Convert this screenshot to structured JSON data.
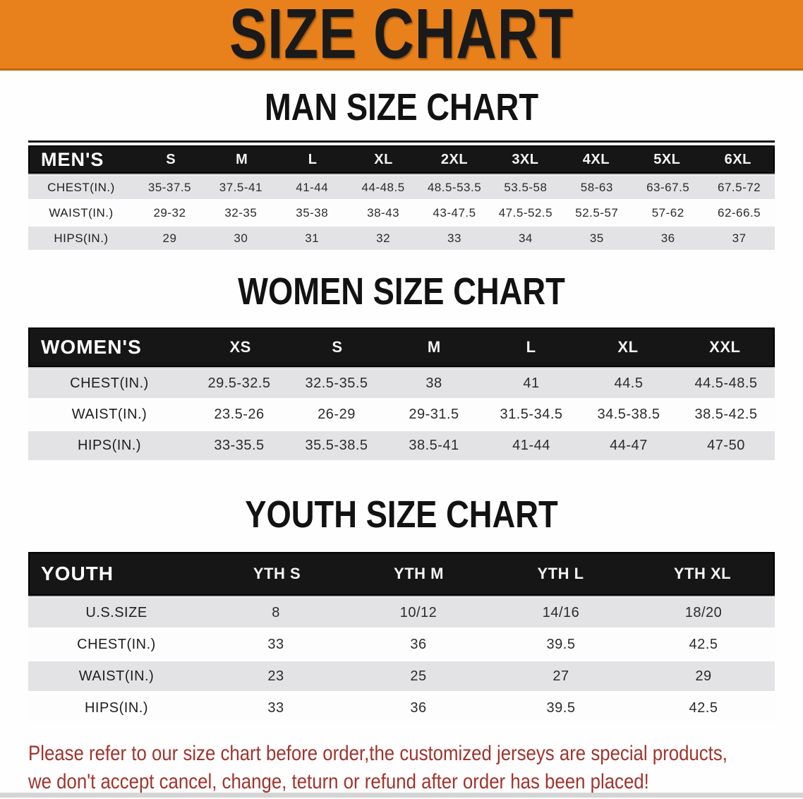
{
  "banner": {
    "title": "SIZE CHART",
    "bg_color": "#E8811C",
    "text_color": "#1A1A1A"
  },
  "sections": [
    {
      "heading": "MAN SIZE CHART",
      "table": {
        "label": "MEN'S",
        "columns": [
          "S",
          "M",
          "L",
          "XL",
          "2XL",
          "3XL",
          "4XL",
          "5XL",
          "6XL"
        ],
        "rows": [
          {
            "label": "CHEST(IN.)",
            "values": [
              "35-37.5",
              "37.5-41",
              "41-44",
              "44-48.5",
              "48.5-53.5",
              "53.5-58",
              "58-63",
              "63-67.5",
              "67.5-72"
            ]
          },
          {
            "label": "WAIST(IN.)",
            "values": [
              "29-32",
              "32-35",
              "35-38",
              "38-43",
              "43-47.5",
              "47.5-52.5",
              "52.5-57",
              "57-62",
              "62-66.5"
            ]
          },
          {
            "label": "HIPS(IN.)",
            "values": [
              "29",
              "30",
              "31",
              "32",
              "33",
              "34",
              "35",
              "36",
              "37"
            ]
          }
        ]
      }
    },
    {
      "heading": "WOMEN SIZE CHART",
      "table": {
        "label": "WOMEN'S",
        "columns": [
          "XS",
          "S",
          "M",
          "L",
          "XL",
          "XXL"
        ],
        "rows": [
          {
            "label": "CHEST(IN.)",
            "values": [
              "29.5-32.5",
              "32.5-35.5",
              "38",
              "41",
              "44.5",
              "44.5-48.5"
            ]
          },
          {
            "label": "WAIST(IN.)",
            "values": [
              "23.5-26",
              "26-29",
              "29-31.5",
              "31.5-34.5",
              "34.5-38.5",
              "38.5-42.5"
            ]
          },
          {
            "label": "HIPS(IN.)",
            "values": [
              "33-35.5",
              "35.5-38.5",
              "38.5-41",
              "41-44",
              "44-47",
              "47-50"
            ]
          }
        ]
      }
    },
    {
      "heading": "YOUTH SIZE CHART",
      "table": {
        "label": "YOUTH",
        "columns": [
          "YTH S",
          "YTH M",
          "YTH L",
          "YTH XL"
        ],
        "rows": [
          {
            "label": "U.S.SIZE",
            "values": [
              "8",
              "10/12",
              "14/16",
              "18/20"
            ]
          },
          {
            "label": "CHEST(IN.)",
            "values": [
              "33",
              "36",
              "39.5",
              "42.5"
            ]
          },
          {
            "label": "WAIST(IN.)",
            "values": [
              "23",
              "25",
              "27",
              "29"
            ]
          },
          {
            "label": "HIPS(IN.)",
            "values": [
              "33",
              "36",
              "39.5",
              "42.5"
            ]
          }
        ]
      }
    }
  ],
  "disclaimer": {
    "line1": "Please refer to our size chart before order,the customized jerseys are special products,",
    "line2": "we don't accept cancel, change, teturn or refund after order has been placed!",
    "text_color": "#A0342C"
  },
  "colors": {
    "table_header_bg": "#161616",
    "row_shaded": "#E3E3E5",
    "row_plain": "#FDFDFD"
  }
}
